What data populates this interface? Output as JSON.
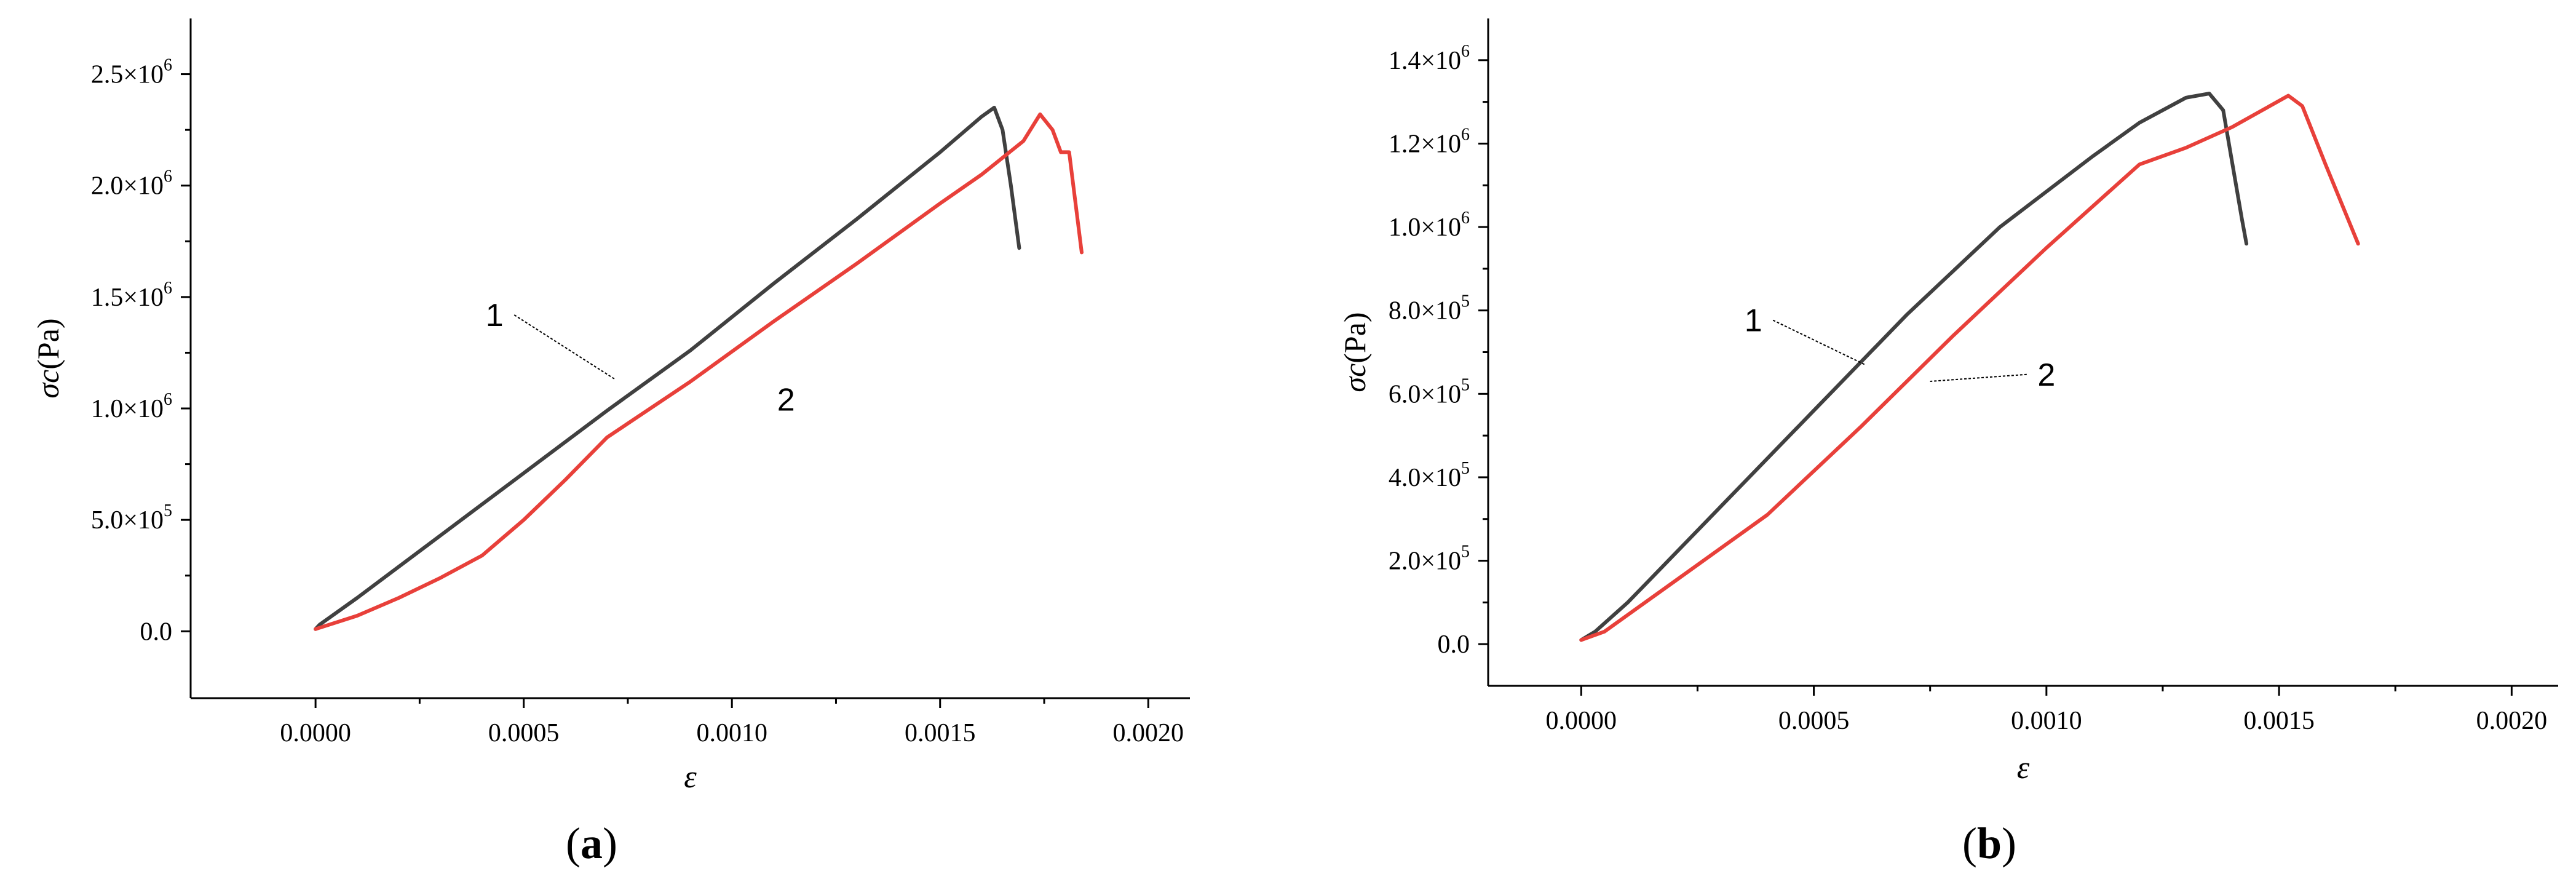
{
  "chart_data": [
    {
      "type": "line",
      "panel_label": "(a)",
      "xlabel": "ε",
      "ylabel_sym": "σc",
      "ylabel_unit": "(Pa)",
      "xlim": [
        -0.0003,
        0.0021
      ],
      "ylim": [
        -300000,
        2750000
      ],
      "x_ticks": [
        {
          "v": 0,
          "label": "0.0000"
        },
        {
          "v": 0.0005,
          "label": "0.0005"
        },
        {
          "v": 0.001,
          "label": "0.0010"
        },
        {
          "v": 0.0015,
          "label": "0.0015"
        },
        {
          "v": 0.002,
          "label": "0.0020"
        }
      ],
      "y_ticks": [
        {
          "v": 0,
          "m": "0.0",
          "e": ""
        },
        {
          "v": 500000,
          "m": "5.0×10",
          "e": "5"
        },
        {
          "v": 1000000,
          "m": "1.0×10",
          "e": "6"
        },
        {
          "v": 1500000,
          "m": "1.5×10",
          "e": "6"
        },
        {
          "v": 2000000,
          "m": "2.0×10",
          "e": "6"
        },
        {
          "v": 2500000,
          "m": "2.5×10",
          "e": "6"
        }
      ],
      "series": [
        {
          "color": "#404040",
          "points": [
            [
              0.0,
              10000
            ],
            [
              1e-05,
              30000
            ],
            [
              0.0001,
              150000
            ],
            [
              0.0003,
              430000
            ],
            [
              0.0005,
              710000
            ],
            [
              0.0007,
              990000
            ],
            [
              0.0009,
              1260000
            ],
            [
              0.0011,
              1560000
            ],
            [
              0.0013,
              1850000
            ],
            [
              0.0015,
              2150000
            ],
            [
              0.0016,
              2310000
            ],
            [
              0.00163,
              2350000
            ],
            [
              0.00165,
              2250000
            ],
            [
              0.00167,
              2000000
            ],
            [
              0.00169,
              1720000
            ]
          ]
        },
        {
          "color": "#e8403a",
          "points": [
            [
              0.0,
              10000
            ],
            [
              0.0001,
              70000
            ],
            [
              0.0002,
              150000
            ],
            [
              0.0003,
              240000
            ],
            [
              0.0004,
              340000
            ],
            [
              0.0005,
              500000
            ],
            [
              0.0006,
              680000
            ],
            [
              0.0007,
              870000
            ],
            [
              0.0009,
              1120000
            ],
            [
              0.0011,
              1390000
            ],
            [
              0.0013,
              1650000
            ],
            [
              0.0015,
              1920000
            ],
            [
              0.0016,
              2050000
            ],
            [
              0.0017,
              2200000
            ],
            [
              0.00174,
              2320000
            ],
            [
              0.00177,
              2250000
            ],
            [
              0.00179,
              2150000
            ],
            [
              0.00181,
              2150000
            ],
            [
              0.00182,
              2000000
            ],
            [
              0.00184,
              1700000
            ]
          ]
        }
      ],
      "annotations": [
        {
          "text": "1",
          "x": 0.00043,
          "y": 1370000,
          "leader_to": [
            0.00072,
            1130000
          ]
        },
        {
          "text": "2",
          "x": 0.00113,
          "y": 990000
        }
      ]
    },
    {
      "type": "line",
      "panel_label": "(b)",
      "xlabel": "ε",
      "ylabel_sym": "σc",
      "ylabel_unit": "(Pa)",
      "xlim": [
        -0.0002,
        0.0021
      ],
      "ylim": [
        -100000,
        1500000
      ],
      "x_ticks": [
        {
          "v": 0,
          "label": "0.0000"
        },
        {
          "v": 0.0005,
          "label": "0.0005"
        },
        {
          "v": 0.001,
          "label": "0.0010"
        },
        {
          "v": 0.0015,
          "label": "0.0015"
        },
        {
          "v": 0.002,
          "label": "0.0020"
        }
      ],
      "y_ticks": [
        {
          "v": 0,
          "m": "0.0",
          "e": ""
        },
        {
          "v": 200000,
          "m": "2.0×10",
          "e": "5"
        },
        {
          "v": 400000,
          "m": "4.0×10",
          "e": "5"
        },
        {
          "v": 600000,
          "m": "6.0×10",
          "e": "5"
        },
        {
          "v": 800000,
          "m": "8.0×10",
          "e": "5"
        },
        {
          "v": 1000000,
          "m": "1.0×10",
          "e": "6"
        },
        {
          "v": 1200000,
          "m": "1.2×10",
          "e": "6"
        },
        {
          "v": 1400000,
          "m": "1.4×10",
          "e": "6"
        }
      ],
      "series": [
        {
          "color": "#404040",
          "points": [
            [
              0.0,
              10000
            ],
            [
              3e-05,
              30000
            ],
            [
              0.0001,
              100000
            ],
            [
              0.0003,
              330000
            ],
            [
              0.0005,
              560000
            ],
            [
              0.0007,
              790000
            ],
            [
              0.0009,
              1000000
            ],
            [
              0.0011,
              1170000
            ],
            [
              0.0012,
              1250000
            ],
            [
              0.0013,
              1310000
            ],
            [
              0.00135,
              1320000
            ],
            [
              0.00138,
              1280000
            ],
            [
              0.0014,
              1150000
            ],
            [
              0.00142,
              1020000
            ],
            [
              0.00143,
              960000
            ]
          ]
        },
        {
          "color": "#e8403a",
          "points": [
            [
              0.0,
              10000
            ],
            [
              5e-05,
              30000
            ],
            [
              0.0002,
              150000
            ],
            [
              0.0004,
              310000
            ],
            [
              0.0006,
              520000
            ],
            [
              0.0008,
              740000
            ],
            [
              0.001,
              950000
            ],
            [
              0.0012,
              1150000
            ],
            [
              0.0013,
              1190000
            ],
            [
              0.0014,
              1240000
            ],
            [
              0.00148,
              1290000
            ],
            [
              0.00152,
              1315000
            ],
            [
              0.00155,
              1290000
            ],
            [
              0.0016,
              1150000
            ],
            [
              0.00167,
              960000
            ]
          ]
        }
      ],
      "annotations": [
        {
          "text": "1",
          "x": 0.00037,
          "y": 750000,
          "leader_to": [
            0.00061,
            670000
          ]
        },
        {
          "text": "2",
          "x": 0.001,
          "y": 620000,
          "leader_to": [
            0.00075,
            630000
          ]
        }
      ]
    }
  ]
}
